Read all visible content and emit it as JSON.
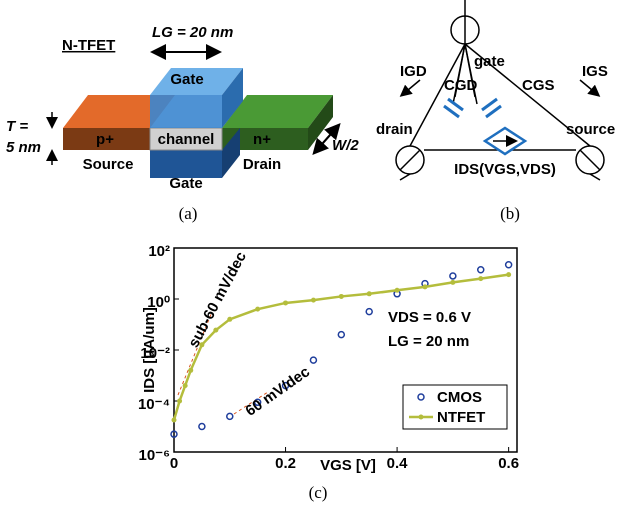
{
  "panel_a": {
    "name": "N-TFET",
    "gate_length": "LG = 20 nm",
    "gate_top": "Gate",
    "source_doping": "p+",
    "channel": "channel",
    "drain_doping": "n+",
    "source": "Source",
    "gate_bottom": "Gate",
    "drain": "Drain",
    "thickness_1": "T =",
    "thickness_2": "5 nm",
    "width": "W/2"
  },
  "panel_b": {
    "gate": "gate",
    "igd": "IGD",
    "cgd": "CGD",
    "cgs": "CGS",
    "igs": "IGS",
    "drain": "drain",
    "source": "source",
    "ids": "IDS(VGS,VDS)"
  },
  "captions": {
    "a": "(a)",
    "b": "(b)",
    "c": "(c)"
  },
  "chart_data": {
    "type": "line",
    "xlabel": "VGS [V]",
    "ylabel": "IDS [uA/um]",
    "yscale": "log",
    "xlim": [
      0,
      0.615
    ],
    "ylim": [
      1e-06,
      100
    ],
    "xticks": [
      0,
      0.2,
      0.4,
      0.6
    ],
    "yticks": [
      {
        "value": 100,
        "label": "10²"
      },
      {
        "value": 1,
        "label": "10⁰"
      },
      {
        "value": 0.01,
        "label": "10⁻²"
      },
      {
        "value": 0.0001,
        "label": "10⁻⁴"
      },
      {
        "value": 1e-06,
        "label": "10⁻⁶"
      }
    ],
    "legend": "lower right",
    "series": [
      {
        "name": "CMOS",
        "color": "#1f3e9c",
        "marker": "circle",
        "line": false,
        "x": [
          0,
          0.05,
          0.1,
          0.15,
          0.2,
          0.25,
          0.3,
          0.35,
          0.4,
          0.45,
          0.5,
          0.55,
          0.6
        ],
        "values": [
          5e-06,
          1e-05,
          2.5e-05,
          8.9e-05,
          0.0004,
          0.004,
          0.04,
          0.32,
          1.6,
          4,
          8,
          14,
          22
        ]
      },
      {
        "name": "NTFET",
        "color": "#b4bd3c",
        "marker": "dot",
        "line": true,
        "x": [
          0,
          0.01,
          0.02,
          0.03,
          0.05,
          0.075,
          0.1,
          0.15,
          0.2,
          0.25,
          0.3,
          0.35,
          0.4,
          0.45,
          0.5,
          0.55,
          0.6
        ],
        "values": [
          1.8e-05,
          0.0001,
          0.0004,
          0.0016,
          0.016,
          0.06,
          0.16,
          0.4,
          0.7,
          0.9,
          1.26,
          1.6,
          2.2,
          3,
          4.5,
          6.3,
          9
        ]
      }
    ],
    "annotations": [
      {
        "text": "sub-60 mV/dec",
        "color": "#d9541e"
      },
      {
        "text": "60 mV/dec",
        "color": "#d9541e"
      },
      {
        "text": "VDS = 0.6 V",
        "color": "#000000"
      },
      {
        "text": "LG = 20 nm",
        "color": "#000000"
      }
    ]
  }
}
